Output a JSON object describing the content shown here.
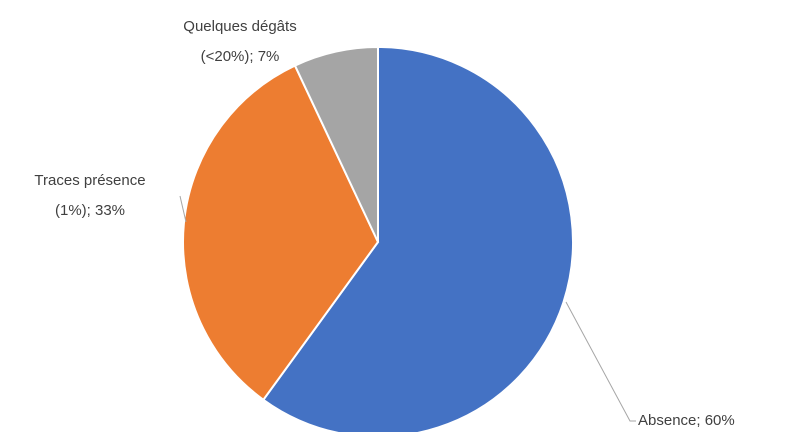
{
  "chart_data": {
    "type": "pie",
    "values": [
      60,
      33,
      7
    ],
    "value_labels": [
      [
        "Absence; 60%"
      ],
      [
        "Traces présence",
        "(1%); 33%"
      ],
      [
        "Quelques dégâts",
        "(<20%); 7%"
      ]
    ],
    "colors": [
      "#4472c4",
      "#ed7d31",
      "#a5a5a5"
    ]
  }
}
